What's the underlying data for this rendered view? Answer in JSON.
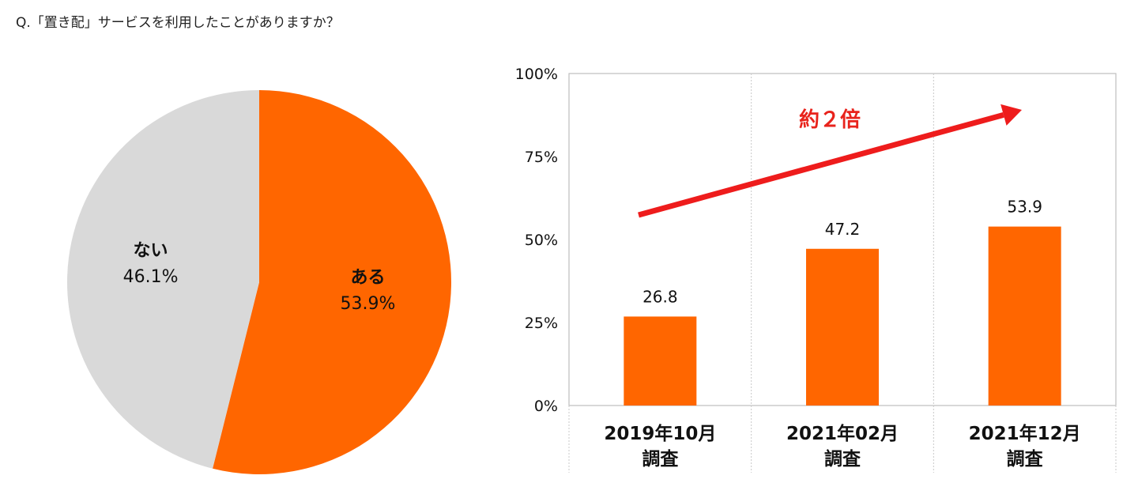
{
  "question": "Q.「置き配」サービスを利用したことがありますか？",
  "colors": {
    "accent": "#ff6600",
    "other": "#d9d9d9",
    "arrow": "#ee1c1c",
    "annotation": "#e8231c"
  },
  "chart_data": [
    {
      "type": "pie",
      "slices": [
        {
          "label": "ある",
          "value": 53.9,
          "value_label": "53.9%",
          "color": "#ff6600"
        },
        {
          "label": "ない",
          "value": 46.1,
          "value_label": "46.1%",
          "color": "#d9d9d9"
        }
      ]
    },
    {
      "type": "bar",
      "categories": [
        {
          "line1": "2019年10月",
          "line2": "調査"
        },
        {
          "line1": "2021年02月",
          "line2": "調査"
        },
        {
          "line1": "2021年12月",
          "line2": "調査"
        }
      ],
      "values": [
        26.8,
        47.2,
        53.9
      ],
      "value_labels": [
        "26.8",
        "47.2",
        "53.9"
      ],
      "yticks": [
        "0%",
        "25%",
        "50%",
        "75%",
        "100%"
      ],
      "ylim": [
        0,
        100
      ],
      "bar_color": "#ff6600",
      "annotation": "約２倍",
      "trend_arrow": true
    }
  ]
}
